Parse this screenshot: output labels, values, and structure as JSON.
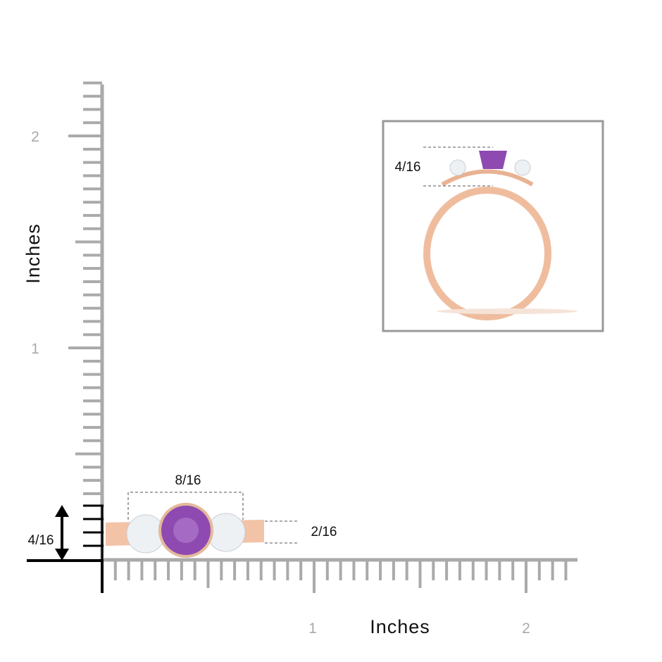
{
  "ruler": {
    "y_axis": {
      "title": "Inches",
      "ticks": [
        "1",
        "2"
      ]
    },
    "x_axis": {
      "title": "Inches",
      "ticks": [
        "1",
        "2"
      ]
    }
  },
  "dimensions": {
    "width": "8/16",
    "band_height": "2/16",
    "height": "4/16",
    "inset_height": "4/16"
  }
}
